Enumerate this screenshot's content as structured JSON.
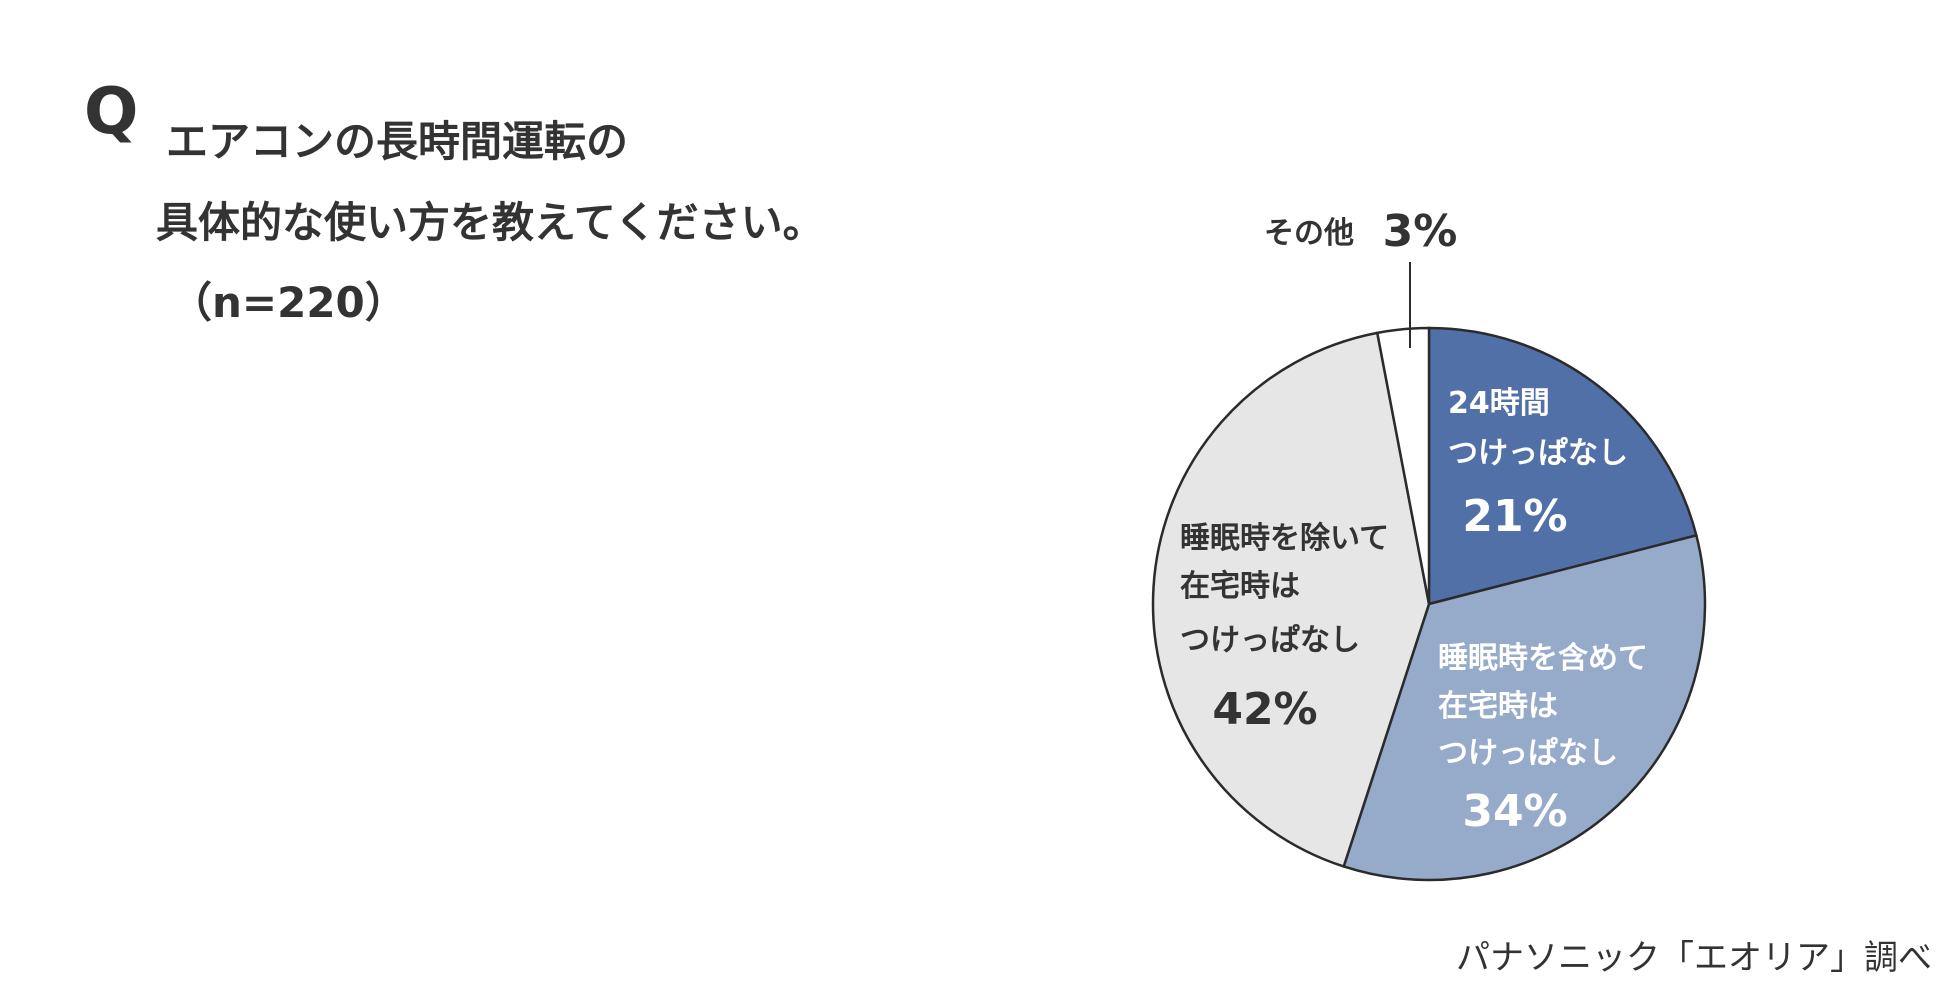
{
  "question": {
    "mark": "Q",
    "lines": [
      "エアコンの長時間運転の",
      "具体的な使い方を教えてください。",
      "（n=220）"
    ]
  },
  "source": "パナソニック「エオリア」調べ",
  "colors": {
    "slice1": "#5170a7",
    "slice2": "#96aac9",
    "slice3": "#e6e6e6",
    "slice4": "#ffffff",
    "stroke": "#2b2b2b"
  },
  "chart_data": {
    "type": "pie",
    "slices": [
      {
        "label": [
          "24時間",
          "つけっぱなし"
        ],
        "value": 21,
        "value_label": "21%"
      },
      {
        "label": [
          "睡眠時を含めて",
          "在宅時は",
          "つけっぱなし"
        ],
        "value": 34,
        "value_label": "34%"
      },
      {
        "label": [
          "睡眠時を除いて",
          "在宅時は",
          "つけっぱなし"
        ],
        "value": 42,
        "value_label": "42%"
      },
      {
        "label": [
          "その他"
        ],
        "value": 3,
        "value_label": "3%"
      }
    ]
  }
}
